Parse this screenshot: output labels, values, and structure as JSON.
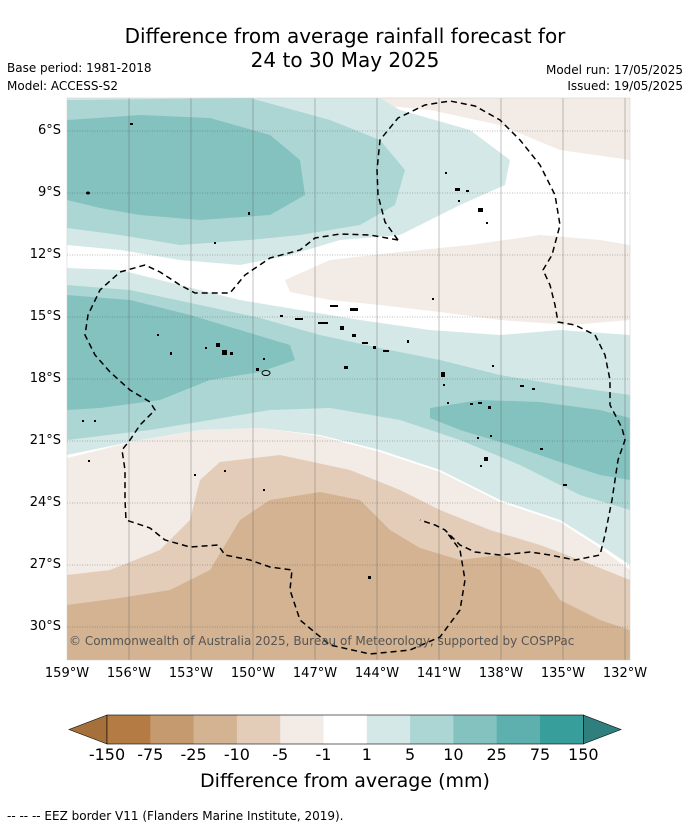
{
  "header": {
    "title_line1": "Difference from average rainfall forecast for",
    "title_line2": "24 to 30 May 2025",
    "base_period": "Base period: 1981-2018",
    "model": "Model: ACCESS-S2",
    "model_run": "Model run: 17/05/2025",
    "issued": "Issued: 19/05/2025"
  },
  "map": {
    "lat_labels": [
      "6°S",
      "9°S",
      "12°S",
      "15°S",
      "18°S",
      "21°S",
      "24°S",
      "27°S",
      "30°S"
    ],
    "lon_labels": [
      "159°W",
      "156°W",
      "153°W",
      "150°W",
      "147°W",
      "144°W",
      "141°W",
      "138°W",
      "135°W",
      "132°W"
    ],
    "copyright": "© Commonwealth of Australia 2025, Bureau of Meteorology, supported by COSPPac"
  },
  "colorbar": {
    "labels": [
      "-150",
      "-75",
      "-25",
      "-10",
      "-5",
      "-1",
      "1",
      "5",
      "10",
      "25",
      "75",
      "150"
    ],
    "colors": [
      "#a5703a",
      "#b47c44",
      "#c49a6e",
      "#d3b391",
      "#e3cdb9",
      "#f3ebe5",
      "#ffffff",
      "#d4e9e7",
      "#acd6d4",
      "#84c2c0",
      "#5eb0ae",
      "#379e9c",
      "#2e7f7d"
    ],
    "title": "Difference from average (mm)"
  },
  "footnote": "-- -- -- EEZ border V11 (Flanders Marine Institute, 2019)."
}
